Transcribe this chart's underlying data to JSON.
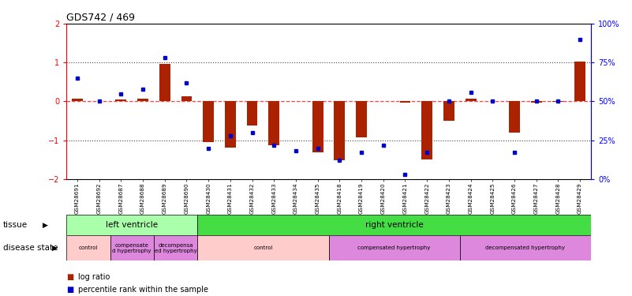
{
  "title": "GDS742 / 469",
  "samples": [
    "GSM28691",
    "GSM28692",
    "GSM28687",
    "GSM28688",
    "GSM28689",
    "GSM28690",
    "GSM28430",
    "GSM28431",
    "GSM28432",
    "GSM28433",
    "GSM28434",
    "GSM28435",
    "GSM28418",
    "GSM28419",
    "GSM28420",
    "GSM28421",
    "GSM28422",
    "GSM28423",
    "GSM28424",
    "GSM28425",
    "GSM28426",
    "GSM28427",
    "GSM28428",
    "GSM28429"
  ],
  "log_ratio": [
    0.08,
    0.0,
    0.04,
    0.07,
    0.97,
    0.13,
    -1.05,
    -1.18,
    -0.62,
    -1.12,
    -0.0,
    -1.32,
    -1.52,
    -0.92,
    0.0,
    -0.04,
    -1.5,
    -0.5,
    0.07,
    0.0,
    -0.8,
    -0.03,
    -0.02,
    1.02
  ],
  "percentile": [
    65,
    50,
    55,
    58,
    78,
    62,
    20,
    28,
    30,
    22,
    18,
    20,
    12,
    17,
    22,
    3,
    17,
    50,
    56,
    50,
    17,
    50,
    50,
    90
  ],
  "tissue_groups": [
    {
      "label": "left ventricle",
      "start": 0,
      "end": 6,
      "color": "#aaffaa"
    },
    {
      "label": "right ventricle",
      "start": 6,
      "end": 24,
      "color": "#44dd44"
    }
  ],
  "disease_groups": [
    {
      "label": "control",
      "start": 0,
      "end": 2,
      "color": "#ffcccc"
    },
    {
      "label": "compensate\nd hypertrophy",
      "start": 2,
      "end": 4,
      "color": "#dd88dd"
    },
    {
      "label": "decompensa\ned hypertrophy",
      "start": 4,
      "end": 6,
      "color": "#dd88dd"
    },
    {
      "label": "control",
      "start": 6,
      "end": 12,
      "color": "#ffcccc"
    },
    {
      "label": "compensated hypertrophy",
      "start": 12,
      "end": 18,
      "color": "#dd88dd"
    },
    {
      "label": "decompensated hypertrophy",
      "start": 18,
      "end": 24,
      "color": "#dd88dd"
    }
  ],
  "ylim": [
    -2,
    2
  ],
  "bar_color": "#aa2200",
  "dot_color": "#0000cc",
  "zero_line_color": "#ff4444",
  "dotted_line_color": "#444444",
  "tissue_label": "tissue",
  "disease_label": "disease state",
  "legend_bar_label": "log ratio",
  "legend_dot_label": "percentile rank within the sample",
  "right_yticks": [
    0,
    25,
    50,
    75,
    100
  ],
  "right_yticklabels": [
    "0%",
    "25%",
    "50%",
    "75%",
    "100%"
  ]
}
